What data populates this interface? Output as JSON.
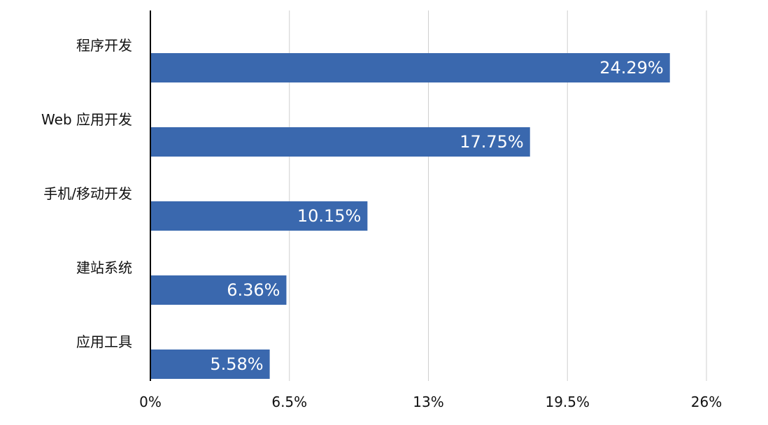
{
  "chart_data": {
    "type": "bar",
    "orientation": "horizontal",
    "categories": [
      "程序开发",
      "Web 应用开发",
      "手机/移动开发",
      "建站系统",
      "应用工具"
    ],
    "values": [
      24.29,
      17.75,
      10.15,
      6.36,
      5.58
    ],
    "data_labels": [
      "24.29%",
      "17.75%",
      "10.15%",
      "6.36%",
      "5.58%"
    ],
    "xlim": [
      0,
      26
    ],
    "x_ticks": [
      0,
      6.5,
      13,
      19.5,
      26
    ],
    "x_tick_labels": [
      "0%",
      "6.5%",
      "13%",
      "19.5%",
      "26%"
    ],
    "grid": true,
    "legend": "none",
    "bar_color": "#3a68ae",
    "grid_color": "#cfcfcf"
  }
}
